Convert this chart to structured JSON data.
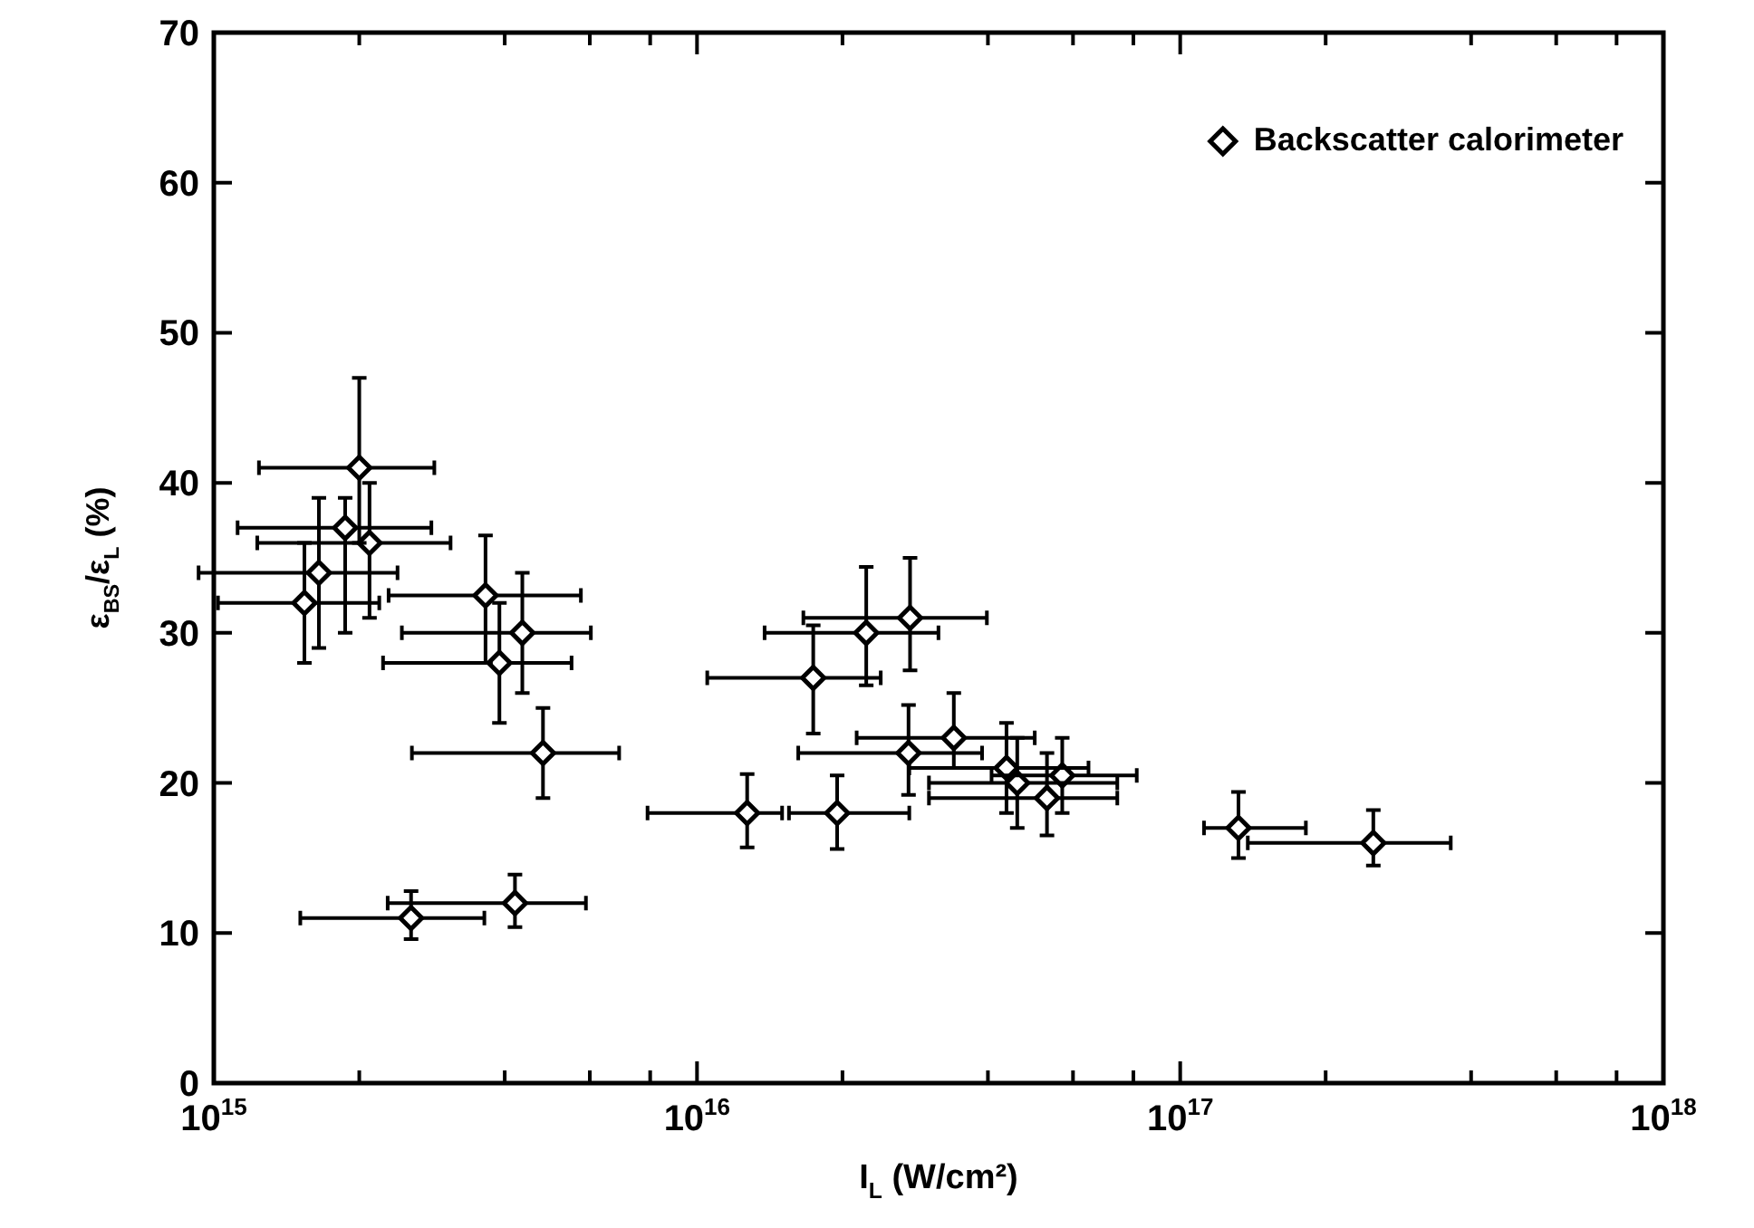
{
  "chart_data": {
    "type": "scatter",
    "xlabel": "I$_{L}$ (W/cm²)",
    "ylabel": "ε$_{BS}$/ε$_{L}$ (%)",
    "log": "x",
    "xlim": [
      1000000000000000.0,
      1e+18
    ],
    "xticks": [
      {
        "value": 1000000000000000.0,
        "label": "10$^{15}$"
      },
      {
        "value": 2000000000000000.0,
        "label": null
      },
      {
        "value": 4000000000000000.0,
        "label": null
      },
      {
        "value": 6000000000000000.0,
        "label": null
      },
      {
        "value": 8000000000000000.0,
        "label": null
      },
      {
        "value": 1e+16,
        "label": "10$^{16}$"
      },
      {
        "value": 2e+16,
        "label": null
      },
      {
        "value": 4e+16,
        "label": null
      },
      {
        "value": 6e+16,
        "label": null
      },
      {
        "value": 8e+16,
        "label": null
      },
      {
        "value": 1e+17,
        "label": "10$^{17}$"
      },
      {
        "value": 2e+17,
        "label": null
      },
      {
        "value": 4e+17,
        "label": null
      },
      {
        "value": 6e+17,
        "label": null
      },
      {
        "value": 8e+17,
        "label": null
      },
      {
        "value": 1e+18,
        "label": "10$^{18}$"
      }
    ],
    "ylim": [
      0,
      70
    ],
    "yticks": [
      0,
      10,
      20,
      30,
      40,
      50,
      60,
      70
    ],
    "grid": false,
    "legend": "top right",
    "marker": "diamond",
    "series": [
      {
        "name": "Backscatter calorimeter",
        "color": "#000000",
        "x": [
          2000000000000000.0,
          1870000000000000.0,
          2100000000000000.0,
          1650000000000000.0,
          1540000000000000.0,
          3650000000000000.0,
          4350000000000000.0,
          3900000000000000.0,
          4800000000000000.0,
          2560000000000000.0,
          4200000000000000.0,
          2.76e+16,
          2.24e+16,
          1.74e+16,
          3.4e+16,
          2.74e+16,
          4.37e+16,
          4.6e+16,
          5.7e+16,
          5.3e+16,
          1.27e+16,
          1.95e+16,
          1.32e+17,
          2.51e+17
        ],
        "values": [
          41,
          37,
          36,
          34,
          32,
          32.5,
          30,
          28,
          22,
          11,
          12,
          31,
          30,
          27,
          23,
          22,
          21,
          20,
          20.5,
          19,
          18,
          18,
          17,
          16
        ],
        "errors": [
          [
            36,
            47
          ],
          [
            30,
            39
          ],
          [
            31,
            40
          ],
          [
            29,
            39
          ],
          [
            28,
            36
          ],
          [
            28,
            36.5
          ],
          [
            26,
            34
          ],
          [
            24,
            32
          ],
          [
            19,
            25
          ],
          [
            9.6,
            12.8
          ],
          [
            10.4,
            13.9
          ],
          [
            27.5,
            35
          ],
          [
            26.5,
            34.4
          ],
          [
            23.3,
            30.5
          ],
          [
            21,
            26
          ],
          [
            19.2,
            25.2
          ],
          [
            18,
            24
          ],
          [
            17,
            23
          ],
          [
            18,
            23
          ],
          [
            16.5,
            22
          ],
          [
            15.7,
            20.6
          ],
          [
            15.6,
            20.5
          ],
          [
            15,
            19.4
          ],
          [
            14.5,
            18.2
          ]
        ],
        "xerrors": [
          [
            1240000000000000.0,
            2860000000000000.0
          ],
          [
            1120000000000000.0,
            2820000000000000.0
          ],
          [
            1230000000000000.0,
            3090000000000000.0
          ],
          [
            930000000000000.0,
            2400000000000000.0
          ],
          [
            1020000000000000.0,
            2200000000000000.0
          ],
          [
            2300000000000000.0,
            5750000000000000.0
          ],
          [
            2450000000000000.0,
            6030000000000000.0
          ],
          [
            2240000000000000.0,
            5500000000000000.0
          ],
          [
            2570000000000000.0,
            6900000000000000.0
          ],
          [
            1510000000000000.0,
            3630000000000000.0
          ],
          [
            2290000000000000.0,
            5890000000000000.0
          ],
          [
            1.66e+16,
            3.98e+16
          ],
          [
            1.38e+16,
            3.16e+16
          ],
          [
            1.05e+16,
            2.4e+16
          ],
          [
            2.14e+16,
            5e+16
          ],
          [
            1.62e+16,
            3.89e+16
          ],
          [
            2.75e+16,
            6.46e+16
          ],
          [
            3.02e+16,
            7.41e+16
          ],
          [
            4.07e+16,
            8.13e+16
          ],
          [
            3.02e+16,
            7.41e+16
          ],
          [
            7900000000000000.0,
            1.5e+16
          ],
          [
            1.55e+16,
            2.75e+16
          ],
          [
            1.12e+17,
            1.82e+17
          ],
          [
            1.38e+17,
            3.63e+17
          ]
        ]
      }
    ]
  }
}
